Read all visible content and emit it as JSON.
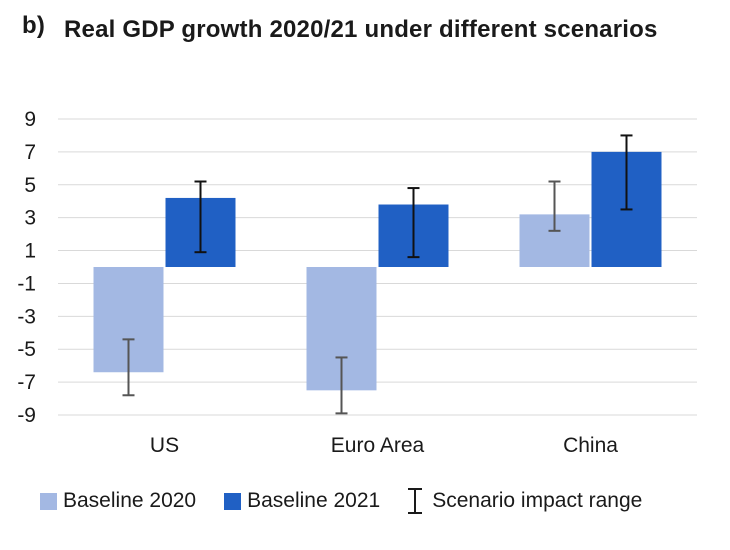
{
  "panel_label": "b)",
  "chart_data": {
    "type": "bar",
    "title": "Real GDP growth 2020/21 under different scenarios",
    "categories": [
      "US",
      "Euro Area",
      "China"
    ],
    "yticks": [
      "9",
      "7",
      "5",
      "3",
      "1",
      "-1",
      "-3",
      "-5",
      "-7",
      "-9"
    ],
    "ylim": [
      -9,
      9
    ],
    "grid": true,
    "series": [
      {
        "name": "Baseline 2020",
        "color": "#a3b8e3",
        "errorbar_color": "#555555",
        "values": [
          -6.4,
          -7.5,
          3.2
        ],
        "range_low": [
          -7.8,
          -8.9,
          2.2
        ],
        "range_high": [
          -4.4,
          -5.5,
          5.2
        ]
      },
      {
        "name": "Baseline 2021",
        "color": "#2060c4",
        "errorbar_color": "#111111",
        "values": [
          4.2,
          3.8,
          7.0
        ],
        "range_low": [
          0.9,
          0.6,
          3.5
        ],
        "range_high": [
          5.2,
          4.8,
          8.0
        ]
      }
    ],
    "legend": {
      "position": "bottom",
      "range_label": "Scenario impact range"
    }
  }
}
